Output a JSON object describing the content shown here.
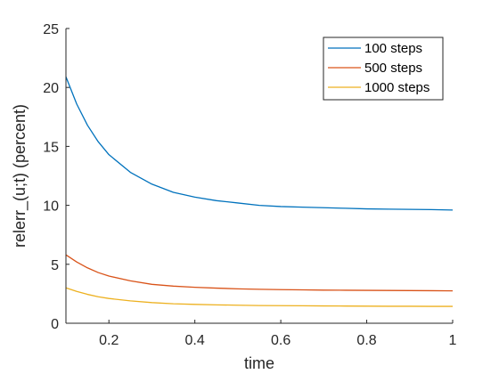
{
  "chart_data": {
    "type": "line",
    "title": "",
    "xlabel": "time",
    "ylabel": "relerr_(u;t) (percent)",
    "xlim": [
      0.1,
      1
    ],
    "ylim": [
      0,
      25
    ],
    "x_ticks": [
      0.2,
      0.4,
      0.6,
      0.8,
      1
    ],
    "x_tick_labels": [
      "0.2",
      "0.4",
      "0.6",
      "0.8",
      "1"
    ],
    "y_ticks": [
      0,
      5,
      10,
      15,
      20,
      25
    ],
    "y_tick_labels": [
      "0",
      "5",
      "10",
      "15",
      "20",
      "25"
    ],
    "grid": false,
    "legend_position": "top-right",
    "x": [
      0.1,
      0.125,
      0.15,
      0.175,
      0.2,
      0.25,
      0.3,
      0.35,
      0.4,
      0.45,
      0.5,
      0.55,
      0.6,
      0.65,
      0.7,
      0.75,
      0.8,
      0.85,
      0.9,
      0.95,
      1.0
    ],
    "series": [
      {
        "name": "100 steps",
        "color": "#0072BD",
        "values": [
          20.9,
          18.6,
          16.8,
          15.4,
          14.3,
          12.8,
          11.8,
          11.1,
          10.7,
          10.4,
          10.2,
          10.0,
          9.9,
          9.85,
          9.8,
          9.75,
          9.7,
          9.68,
          9.66,
          9.64,
          9.6
        ]
      },
      {
        "name": "500 steps",
        "color": "#D95319",
        "values": [
          5.8,
          5.2,
          4.7,
          4.3,
          4.0,
          3.6,
          3.3,
          3.15,
          3.05,
          2.98,
          2.92,
          2.88,
          2.85,
          2.83,
          2.81,
          2.8,
          2.79,
          2.78,
          2.77,
          2.76,
          2.75
        ]
      },
      {
        "name": "1000 steps",
        "color": "#EDB120",
        "values": [
          3.0,
          2.7,
          2.45,
          2.25,
          2.1,
          1.9,
          1.75,
          1.65,
          1.6,
          1.56,
          1.53,
          1.5,
          1.49,
          1.48,
          1.47,
          1.46,
          1.45,
          1.44,
          1.44,
          1.43,
          1.43
        ]
      }
    ]
  }
}
